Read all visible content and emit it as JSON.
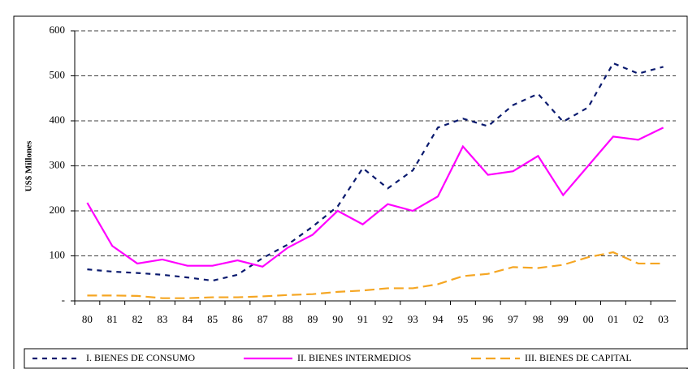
{
  "chart_data": {
    "type": "line",
    "y_label": "US$ Millones",
    "categories": [
      "80",
      "81",
      "82",
      "83",
      "84",
      "85",
      "86",
      "87",
      "88",
      "89",
      "90",
      "91",
      "92",
      "93",
      "94",
      "95",
      "96",
      "97",
      "98",
      "99",
      "00",
      "01",
      "02",
      "03"
    ],
    "series": [
      {
        "name": "I. BIENES DE CONSUMO",
        "color": "#0a1a6e",
        "dash": "6,6",
        "values": [
          70,
          65,
          62,
          58,
          52,
          45,
          58,
          95,
          125,
          165,
          210,
          295,
          250,
          290,
          385,
          405,
          388,
          435,
          460,
          398,
          430,
          528,
          505,
          520
        ]
      },
      {
        "name": "II. BIENES INTERMEDIOS",
        "color": "#ff00ff",
        "dash": "",
        "values": [
          218,
          122,
          83,
          92,
          78,
          78,
          90,
          76,
          118,
          147,
          200,
          170,
          215,
          200,
          232,
          343,
          280,
          288,
          322,
          235,
          300,
          365,
          358,
          385
        ]
      },
      {
        "name": "III. BIENES DE CAPITAL",
        "color": "#f5a623",
        "dash": "12,6",
        "values": [
          12,
          12,
          11,
          6,
          6,
          8,
          8,
          10,
          13,
          15,
          20,
          23,
          28,
          28,
          37,
          55,
          60,
          75,
          73,
          80,
          97,
          108,
          83,
          83
        ]
      }
    ],
    "ylim": [
      0,
      600
    ],
    "yticks": [
      {
        "value": 0,
        "label": "-"
      },
      100,
      200,
      300,
      400,
      500,
      600
    ],
    "grid": true
  }
}
